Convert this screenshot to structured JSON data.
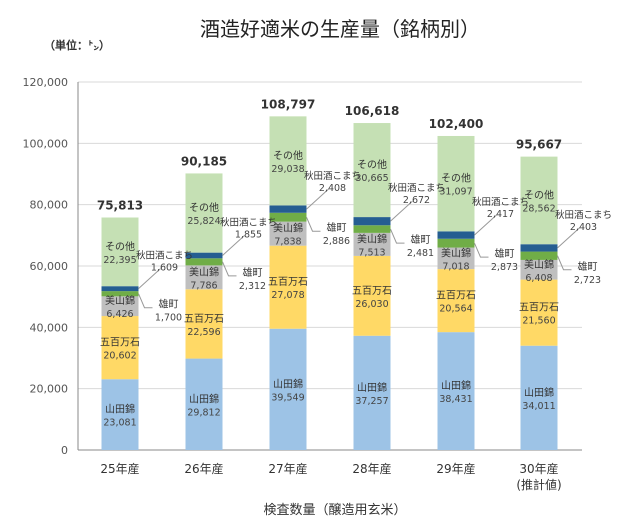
{
  "chart_data": {
    "type": "bar",
    "stacked": true,
    "title": "酒造好適米の生産量（銘柄別）",
    "unit_label": "（単位：㌧）",
    "xlabel": "検査数量（醸造用玄米）",
    "ylabel": "",
    "ylim": [
      0,
      120000
    ],
    "yticks": [
      0,
      20000,
      40000,
      60000,
      80000,
      100000,
      120000
    ],
    "ytick_labels": [
      "0",
      "20,000",
      "40,000",
      "60,000",
      "80,000",
      "100,000",
      "120,000"
    ],
    "grid": true,
    "legend": "none (inline labels)",
    "categories": [
      "25年産",
      "26年産",
      "27年産",
      "28年産",
      "29年産",
      "30年産"
    ],
    "category_sublabels": [
      "",
      "",
      "",
      "",
      "",
      "(推計値)"
    ],
    "totals": [
      75813,
      90185,
      108797,
      106618,
      102400,
      95667
    ],
    "total_labels": [
      "75,813",
      "90,185",
      "108,797",
      "106,618",
      "102,400",
      "95,667"
    ],
    "series": [
      {
        "name": "山田錦",
        "color": "#9dc3e6",
        "values": [
          23081,
          29812,
          39549,
          37257,
          38431,
          34011
        ],
        "labels": [
          "23,081",
          "29,812",
          "39,549",
          "37,257",
          "38,431",
          "34,011"
        ]
      },
      {
        "name": "五百万石",
        "color": "#ffd966",
        "values": [
          20602,
          22596,
          27078,
          26030,
          20564,
          21560
        ],
        "labels": [
          "20,602",
          "22,596",
          "27,078",
          "26,030",
          "20,564",
          "21,560"
        ]
      },
      {
        "name": "美山錦",
        "color": "#bfbfbf",
        "values": [
          6426,
          7786,
          7838,
          7513,
          7018,
          6408
        ],
        "labels": [
          "6,426",
          "7,786",
          "7,838",
          "7,513",
          "7,018",
          "6,408"
        ]
      },
      {
        "name": "雄町",
        "color": "#70ad47",
        "values": [
          1700,
          2312,
          2886,
          2481,
          2873,
          2723
        ],
        "labels": [
          "1,700",
          "2,312",
          "2,886",
          "2,481",
          "2,873",
          "2,723"
        ]
      },
      {
        "name": "秋田酒こまち",
        "color": "#255e91",
        "values": [
          1609,
          1855,
          2408,
          2672,
          2417,
          2403
        ],
        "labels": [
          "1,609",
          "1,855",
          "2,408",
          "2,672",
          "2,417",
          "2,403"
        ]
      },
      {
        "name": "その他",
        "color": "#c5e0b4",
        "values": [
          22395,
          25824,
          29038,
          30665,
          31097,
          28562
        ],
        "labels": [
          "22,395",
          "25,824",
          "29,038",
          "30,665",
          "31,097",
          "28,562"
        ]
      }
    ]
  }
}
